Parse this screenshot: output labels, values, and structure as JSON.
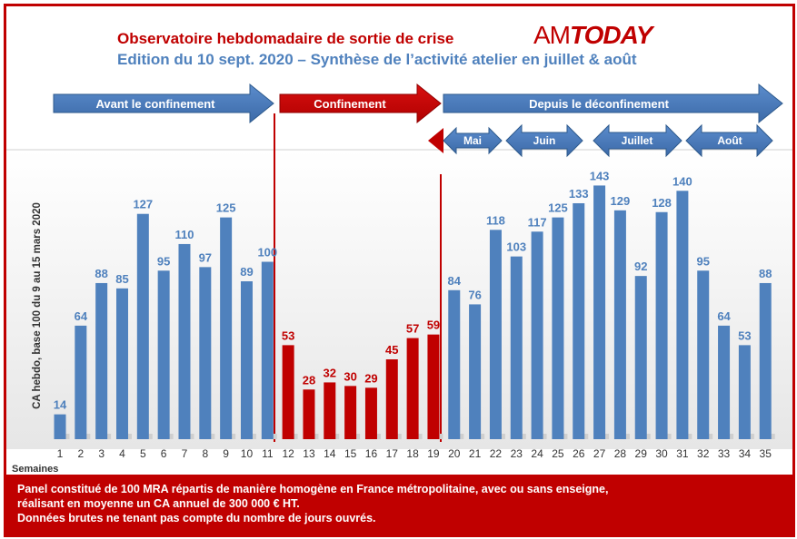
{
  "header": {
    "title": "Observatoire hebdomadaire de sortie de crise",
    "subtitle": "Edition du 10 sept. 2020 – Synthèse de l’activité atelier en juillet & août",
    "logo_am": "AM",
    "logo_today": "TODAY"
  },
  "phases": {
    "before": "Avant le confinement",
    "during": "Confinement",
    "after": "Depuis le déconfinement"
  },
  "months": [
    "Mai",
    "Juin",
    "Juillet",
    "Août"
  ],
  "chart_data": {
    "type": "bar",
    "ylabel": "CA hebdo, base 100 du 9 au 15 mars 2020",
    "xlabel": "Semaines",
    "ylim": [
      0,
      155
    ],
    "categories": [
      "1",
      "2",
      "3",
      "4",
      "5",
      "6",
      "7",
      "8",
      "9",
      "10",
      "11",
      "12",
      "13",
      "14",
      "15",
      "16",
      "17",
      "18",
      "19",
      "20",
      "21",
      "22",
      "23",
      "24",
      "25",
      "26",
      "27",
      "28",
      "29",
      "30",
      "31",
      "32",
      "33",
      "34",
      "35"
    ],
    "values": [
      14,
      64,
      88,
      85,
      127,
      95,
      110,
      97,
      125,
      89,
      100,
      53,
      28,
      32,
      30,
      29,
      45,
      57,
      59,
      84,
      76,
      118,
      103,
      117,
      125,
      133,
      143,
      129,
      92,
      128,
      140,
      95,
      64,
      53,
      88
    ],
    "confinement_weeks": [
      12,
      19
    ],
    "colors": {
      "normal": "#4f81bd",
      "confinement": "#c00000"
    }
  },
  "footer": {
    "line1": "Panel constitué de 100 MRA répartis de manière homogène en France métropolitaine, avec ou sans enseigne,",
    "line2": "réalisant en moyenne un CA annuel de 300 000 € HT.",
    "line3": "Données brutes ne tenant pas compte du nombre de jours ouvrés."
  }
}
